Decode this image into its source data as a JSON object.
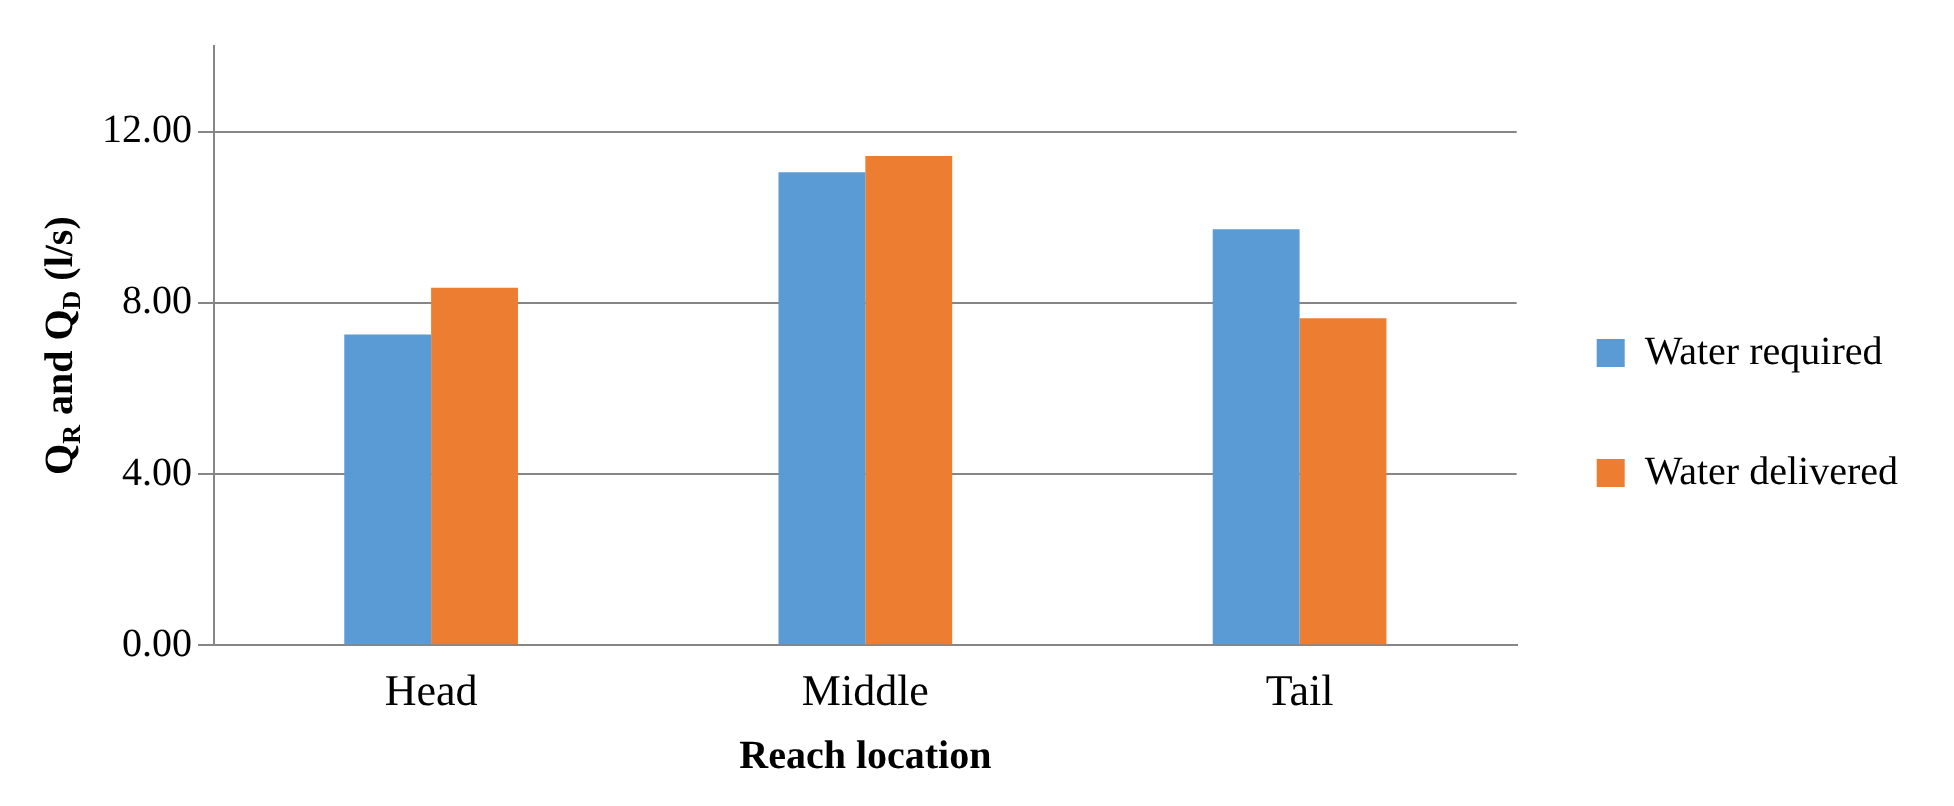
{
  "chart_data": {
    "type": "bar",
    "xlabel": "Reach location",
    "ylabel": "Q$_{R}$ and Q$_{D}$ (l/s)",
    "categories": [
      "Head",
      "Middle",
      "Tail"
    ],
    "series": [
      {
        "name": "Water required",
        "color": "#5b9bd5",
        "values": [
          7.26,
          11.05,
          9.72
        ]
      },
      {
        "name": "Water delivered",
        "color": "#ed7d31",
        "values": [
          8.35,
          11.43,
          7.64
        ]
      }
    ],
    "ylim": [
      0,
      14
    ],
    "yticks": [
      {
        "value": 0,
        "label": "0.00"
      },
      {
        "value": 4,
        "label": "4.00"
      },
      {
        "value": 8,
        "label": "8.00"
      },
      {
        "value": 12,
        "label": "12.00"
      }
    ],
    "grid": "y",
    "legend": "right"
  }
}
